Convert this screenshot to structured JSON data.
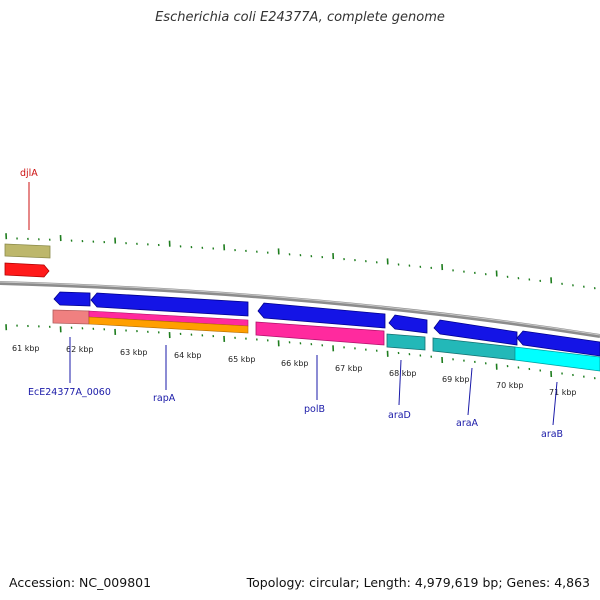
{
  "title": "Escherichia coli E24377A, complete genome",
  "footer": {
    "accession": "Accession: NC_009801",
    "summary": "Topology: circular; Length: 4,979,619 bp; Genes: 4,863"
  },
  "colors": {
    "backbone": "#8c8c8c",
    "tick": "#1e7d1e",
    "label_blue": "#1a1aa8",
    "label_red": "#cc1111",
    "cds_blue": "#1414e6",
    "khaki": "#bdb76b",
    "red": "#ff1a1a",
    "salmon": "#f08080",
    "pink": "#ff2a9e",
    "orange": "#ff9f00",
    "teal": "#23b8b8",
    "cyan": "#00ffff"
  },
  "kbp_ticks": [
    "61 kbp",
    "62 kbp",
    "63 kbp",
    "64 kbp",
    "65 kbp",
    "66 kbp",
    "67 kbp",
    "68 kbp",
    "69 kbp",
    "70 kbp",
    "71 kbp"
  ],
  "gene_labels": [
    {
      "name": "djlA",
      "color": "red"
    },
    {
      "name": "EcE24377A_0060",
      "color": "blue"
    },
    {
      "name": "rapA",
      "color": "blue"
    },
    {
      "name": "polB",
      "color": "blue"
    },
    {
      "name": "araD",
      "color": "blue"
    },
    {
      "name": "araA",
      "color": "blue"
    },
    {
      "name": "araB",
      "color": "blue"
    }
  ]
}
